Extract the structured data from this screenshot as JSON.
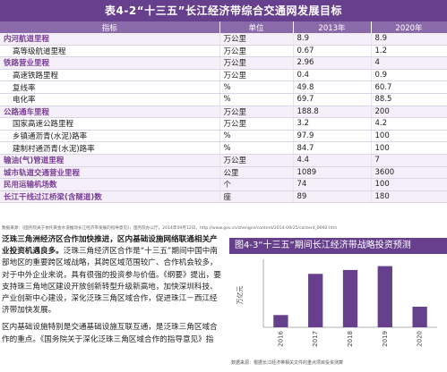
{
  "table": {
    "title": "表4-2“十三五”长江经济带综合交通网发展目标",
    "headers": [
      "指标",
      "单位",
      "2013年",
      "2020年"
    ],
    "rows": [
      {
        "label": "内河航道里程",
        "unit": "万公里",
        "v2013": "8.9",
        "v2020": "8.9",
        "kind": "cat"
      },
      {
        "label": "高等级航道里程",
        "unit": "万公里",
        "v2013": "0.67",
        "v2020": "1.2",
        "kind": "sub"
      },
      {
        "label": "铁路营业里程",
        "unit": "万公里",
        "v2013": "2.96",
        "v2020": "4",
        "kind": "cat"
      },
      {
        "label": "高速铁路里程",
        "unit": "万公里",
        "v2013": "0.4",
        "v2020": "0.9",
        "kind": "sub"
      },
      {
        "label": "复线率",
        "unit": "%",
        "v2013": "49.8",
        "v2020": "60.7",
        "kind": "sub"
      },
      {
        "label": "电化率",
        "unit": "%",
        "v2013": "69.7",
        "v2020": "88.5",
        "kind": "sub"
      },
      {
        "label": "公路通车里程",
        "unit": "万公里",
        "v2013": "188.8",
        "v2020": "200",
        "kind": "cat"
      },
      {
        "label": "国家高速公路里程",
        "unit": "万公里",
        "v2013": "3.2",
        "v2020": "4.2",
        "kind": "sub"
      },
      {
        "label": "乡镇通沥青(水泥)路率",
        "unit": "%",
        "v2013": "97.9",
        "v2020": "100",
        "kind": "sub"
      },
      {
        "label": "建制村通沥青(水泥)路率",
        "unit": "%",
        "v2013": "84.7",
        "v2020": "100",
        "kind": "sub"
      },
      {
        "label": "输油(气)管道里程",
        "unit": "万公里",
        "v2013": "4.4",
        "v2020": "7",
        "kind": "cat"
      },
      {
        "label": "城市轨道交通营业里程",
        "unit": "公里",
        "v2013": "1089",
        "v2020": "3600",
        "kind": "cat"
      },
      {
        "label": "民用运输机场数",
        "unit": "个",
        "v2013": "74",
        "v2020": "100",
        "kind": "cat"
      },
      {
        "label": "长江干线过江桥梁(含隧道)数",
        "unit": "座",
        "v2013": "89",
        "v2020": "180",
        "kind": "cat"
      }
    ],
    "source": "数据来源：《国务院关于依托黄金水道推动长江经济带发展的指导意见》，国务院办公厅，2014年09月12日，http://www.gov.cn/zhengce/content/2014-09/25/content_9092.htm"
  },
  "text": {
    "p1_lead": "泛珠三角洲经济区合作加快推进，区内基础设施网络联通相关产业投资机遇良多。",
    "p1_body": "泛珠三角经济区合作是“十三五”期间中国中南部地区的重要跨区域战略，其跨区域范围较广、合作机会较多，对于中外企业来说，具有很强的投资参与价值。《纲要》提出，要支持珠三角地区建设开放创新转型升级新高地，加快深圳科技、产业创新中心建设，深化泛珠三角区域合作，促进珠江－西江经济带加快发展。",
    "p2": "区内基础设施特别是交通基础设施互联互通，是泛珠三角区域合作的重点。《国务院关于深化泛珠三角区域合作的指导意见》指出，要建设现代化综合交通运输体系，强化区域内各种运输方式的衔接和综合交通枢纽建设，构建安全、便捷和"
  },
  "chart_data": {
    "type": "bar",
    "title": "图4-3“十三五”期间长江经济带战略投资预测",
    "ylabel": "万亿元",
    "categories": [
      "2016",
      "2017",
      "2018",
      "2019",
      "2020"
    ],
    "values": [
      1.9,
      8.3,
      8.9,
      9.5,
      3.2
    ],
    "ylim": [
      0,
      10
    ],
    "bar_color": "#66408c",
    "source": "数据来源：根据长江经济带相关文件的重点项目投资测算"
  }
}
